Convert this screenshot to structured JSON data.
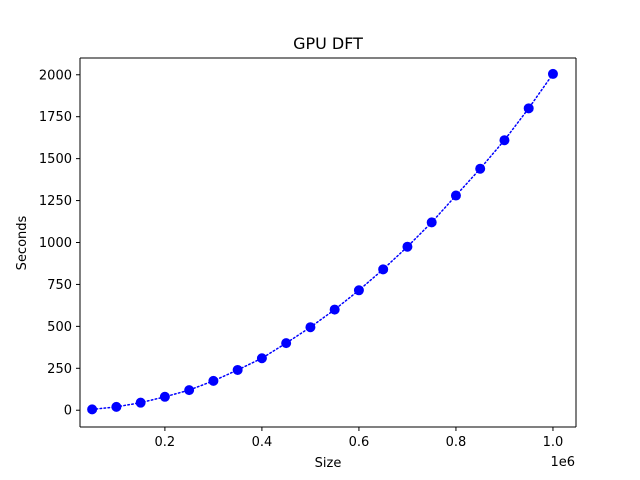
{
  "chart_data": {
    "type": "line",
    "title": "GPU DFT",
    "xlabel": "Size",
    "ylabel": "Seconds",
    "x_offset_label": "1e6",
    "x_scale": 1000000,
    "xlim": [
      25000,
      1047500
    ],
    "ylim": [
      -100,
      2100
    ],
    "x_ticks": [
      0.2,
      0.4,
      0.6,
      0.8,
      1.0
    ],
    "x_tick_labels": [
      "0.2",
      "0.4",
      "0.6",
      "0.8",
      "1.0"
    ],
    "y_ticks": [
      0,
      250,
      500,
      750,
      1000,
      1250,
      1500,
      1750,
      2000
    ],
    "y_tick_labels": [
      "0",
      "250",
      "500",
      "750",
      "1000",
      "1250",
      "1500",
      "1750",
      "2000"
    ],
    "grid": false,
    "series": [
      {
        "line_style": "dotted",
        "marker": "circle",
        "color": "#0000ff",
        "x": [
          50000,
          100000,
          150000,
          200000,
          250000,
          300000,
          350000,
          400000,
          450000,
          500000,
          550000,
          600000,
          650000,
          700000,
          750000,
          800000,
          850000,
          900000,
          950000,
          1000000
        ],
        "y": [
          5,
          20,
          45,
          80,
          120,
          175,
          240,
          310,
          400,
          495,
          600,
          715,
          840,
          975,
          1120,
          1280,
          1440,
          1610,
          1800,
          2005
        ]
      }
    ]
  }
}
